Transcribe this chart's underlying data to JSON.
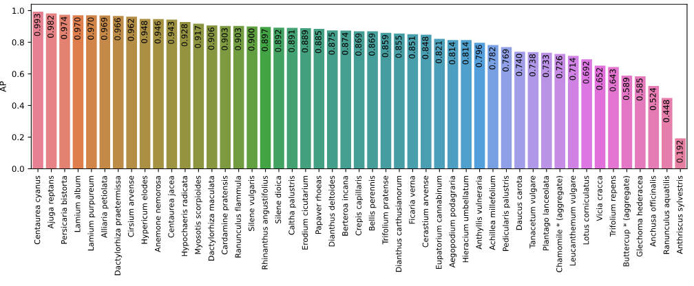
{
  "chart_data": {
    "type": "bar",
    "ylabel": "AP",
    "categories": [
      "Centaurea cyanus",
      "Ajuga reptans",
      "Persicaria bistorta",
      "Lamium album",
      "Lamium purpureum",
      "Alliaria petiolata",
      "Dactylorhiza praetermissa",
      "Cirsium arvense",
      "Hypericum elodes",
      "Anemone nemorosa",
      "Centaurea jacea",
      "Hypochaeris radicata",
      "Myosotis scorpioides",
      "Dactylorhiza maculata",
      "Cardamine pratensis",
      "Ranunculus flammula",
      "Silene vulgaris",
      "Rhinanthus angustifolius",
      "Silene dioica",
      "Caltha palustris",
      "Erodium cicutarium",
      "Papaver rhoeas",
      "Dianthus deltoides",
      "Berteroa incana",
      "Crepis capillaris",
      "Bellis perennis",
      "Trifolium pratense",
      "Dianthus carthusianorum",
      "Ficaria verna",
      "Cerastium arvense",
      "Eupatorium cannabinum",
      "Aegopodium podagraria",
      "Hieracium umbellatum",
      "Anthyllis vulneraria",
      "Achillea millefolium",
      "Pedicularis palustris",
      "Daucus carota",
      "Tanacetum vulgare",
      "Plantago lanceolata",
      "Chamomile * (aggregate)",
      "Leucanthemum vulgare",
      "Lotus corniculatus",
      "Vicia cracca",
      "Trifolium repens",
      "Buttercup * (aggregate)",
      "Glechoma hederacea",
      "Anchusa officinalis",
      "Ranunculus aquatilis",
      "Anthriscus sylvestris"
    ],
    "values": [
      0.993,
      0.982,
      0.974,
      0.97,
      0.97,
      0.969,
      0.966,
      0.962,
      0.948,
      0.946,
      0.943,
      0.928,
      0.917,
      0.906,
      0.903,
      0.903,
      0.9,
      0.897,
      0.892,
      0.891,
      0.889,
      0.885,
      0.875,
      0.874,
      0.869,
      0.869,
      0.859,
      0.855,
      0.851,
      0.848,
      0.821,
      0.814,
      0.814,
      0.796,
      0.782,
      0.769,
      0.74,
      0.738,
      0.733,
      0.726,
      0.714,
      0.692,
      0.652,
      0.643,
      0.589,
      0.585,
      0.524,
      0.448,
      0.192
    ],
    "value_labels": [
      "0.993",
      "0.982",
      "0.974",
      "0.970",
      "0.970",
      "0.969",
      "0.966",
      "0.962",
      "0.948",
      "0.946",
      "0.943",
      "0.928",
      "0.917",
      "0.906",
      "0.903",
      "0.903",
      "0.900",
      "0.897",
      "0.892",
      "0.891",
      "0.889",
      "0.885",
      "0.875",
      "0.874",
      "0.869",
      "0.869",
      "0.859",
      "0.855",
      "0.851",
      "0.848",
      "0.821",
      "0.814",
      "0.814",
      "0.796",
      "0.782",
      "0.769",
      "0.740",
      "0.738",
      "0.733",
      "0.726",
      "0.714",
      "0.692",
      "0.652",
      "0.643",
      "0.589",
      "0.585",
      "0.524",
      "0.448",
      "0.192"
    ],
    "colors": [
      "#e68193",
      "#e68386",
      "#e48271",
      "#df7e4d",
      "#d18549",
      "#c58947",
      "#bc8b45",
      "#b38e44",
      "#ab8f43",
      "#a49142",
      "#9d9241",
      "#959340",
      "#8e9540",
      "#869740",
      "#7d9a40",
      "#719c40",
      "#60a041",
      "#41a344",
      "#42a262",
      "#43a172",
      "#43a07c",
      "#43a084",
      "#449f8a",
      "#449f90",
      "#449e95",
      "#459e9a",
      "#459d9f",
      "#469ea4",
      "#489eaa",
      "#499eb1",
      "#4b9fb8",
      "#4d9fc1",
      "#4f9fcc",
      "#539fdc",
      "#77a0e3",
      "#8fa0e6",
      "#a19de8",
      "#ae98e7",
      "#ba92e6",
      "#c58be5",
      "#d082e4",
      "#db76e2",
      "#e270db",
      "#e374d0",
      "#e377c5",
      "#e47abc",
      "#e57cb3",
      "#e57eaa",
      "#e57fa0"
    ],
    "ylim": [
      0,
      1.04
    ],
    "yticks": [
      "0.0",
      "0.2",
      "0.4",
      "0.6",
      "0.8",
      "1.0"
    ]
  }
}
